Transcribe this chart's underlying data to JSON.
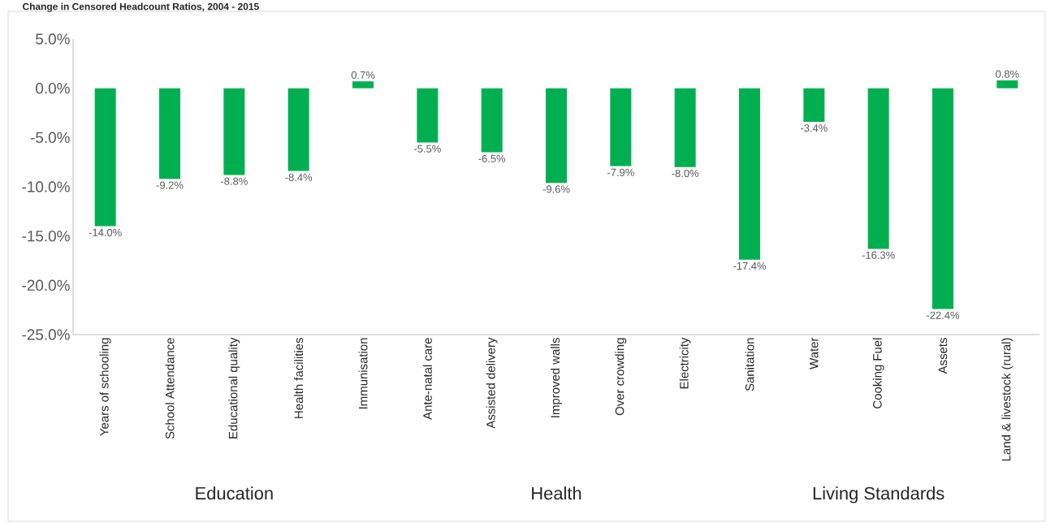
{
  "chart_data": {
    "type": "bar",
    "title": "Change in Censored Headcount Ratios, 2004 - 2015",
    "categories": [
      "Years of schooling",
      "School Attendance",
      "Educational quality",
      "Health facilities",
      "Immunisation",
      "Ante-natal care",
      "Assisted delivery",
      "Improved walls",
      "Over crowding",
      "Electricity",
      "Sanitation",
      "Water",
      "Cooking Fuel",
      "Assets",
      "Land & livestock (rural)"
    ],
    "values": [
      -14.0,
      -9.2,
      -8.8,
      -8.4,
      0.7,
      -5.5,
      -6.5,
      -9.6,
      -7.9,
      -8.0,
      -17.4,
      -3.4,
      -16.3,
      -22.4,
      0.8
    ],
    "value_labels": [
      "-14.0%",
      "-9.2%",
      "-8.8%",
      "-8.4%",
      "0.7%",
      "-5.5%",
      "-6.5%",
      "-9.6%",
      "-7.9%",
      "-8.0%",
      "-17.4%",
      "-3.4%",
      "-16.3%",
      "-22.4%",
      "0.8%"
    ],
    "color": "#00b050",
    "ylim": [
      -25,
      5
    ],
    "yticks": [
      {
        "value": 5,
        "label": "5.0%"
      },
      {
        "value": 0,
        "label": "0.0%"
      },
      {
        "value": -5,
        "label": "-5.0%"
      },
      {
        "value": -10,
        "label": "-10.0%"
      },
      {
        "value": -15,
        "label": "-15.0%"
      },
      {
        "value": -20,
        "label": "-20.0%"
      },
      {
        "value": -25,
        "label": "-25.0%"
      }
    ],
    "grid": false,
    "annotations": [
      "Education",
      "Health",
      "Living Standards"
    ]
  }
}
